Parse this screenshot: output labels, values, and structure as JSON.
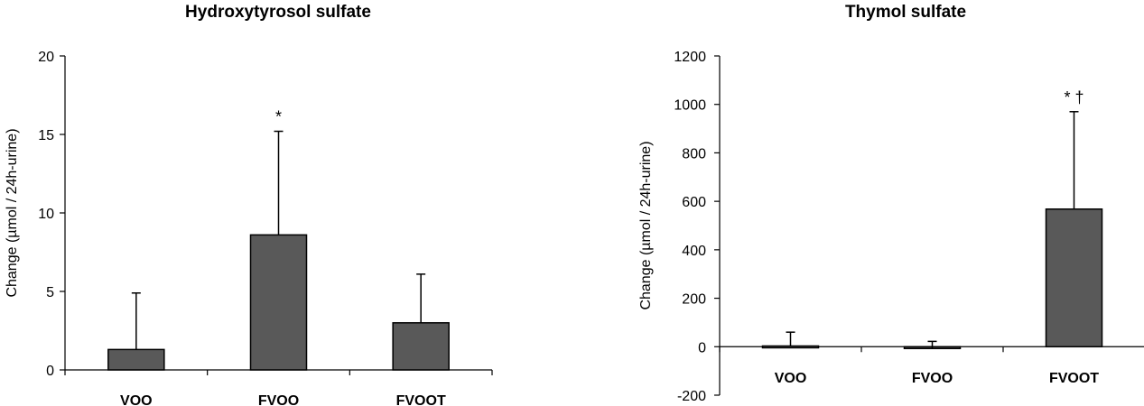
{
  "chart_data": [
    {
      "type": "bar",
      "title": "Hydroxytyrosol sulfate",
      "ylabel": "Change (µmol / 24h-urine)",
      "xlabel": "",
      "categories": [
        "VOO",
        "FVOO",
        "FVOOT"
      ],
      "values": [
        1.3,
        8.6,
        3.0
      ],
      "error_upper": [
        3.6,
        6.6,
        3.1
      ],
      "annotations": [
        "",
        "*",
        ""
      ],
      "ylim": [
        0,
        20
      ],
      "yticks": [
        0,
        5,
        10,
        15,
        20
      ],
      "ytick_labels": [
        "0",
        "5",
        "10",
        "15",
        "20"
      ],
      "grid": false,
      "bar_color": "#595959"
    },
    {
      "type": "bar",
      "title": "Thymol sulfate",
      "ylabel": "Change (µmol / 24h-urine)",
      "xlabel": "",
      "categories": [
        "VOO",
        "FVOO",
        "FVOOT"
      ],
      "values": [
        3,
        -5,
        568
      ],
      "error_upper": [
        57,
        27,
        402
      ],
      "annotations": [
        "",
        "",
        "* †"
      ],
      "ylim": [
        -200,
        1200
      ],
      "yticks": [
        -200,
        0,
        200,
        400,
        600,
        800,
        1000,
        1200
      ],
      "ytick_labels": [
        "-200",
        "0",
        "200",
        "400",
        "600",
        "800",
        "1000",
        "1200"
      ],
      "grid": false,
      "bar_color": "#595959"
    }
  ]
}
